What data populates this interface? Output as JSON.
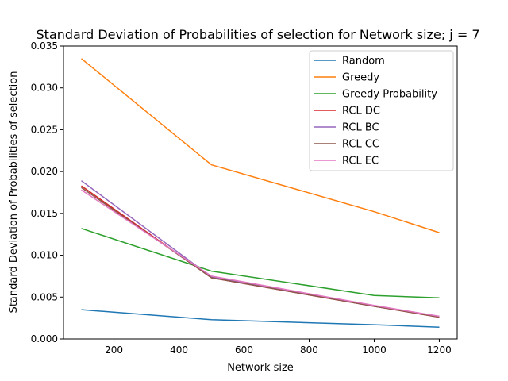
{
  "chart_data": {
    "type": "line",
    "title": "Standard Deviation of Probabilities of selection for Network size; j = 7",
    "xlabel": "Network size",
    "ylabel": "Standard Deviation of Probabilities of selection",
    "x": [
      100,
      500,
      1000,
      1200
    ],
    "xlim": [
      45,
      1255
    ],
    "ylim": [
      0,
      0.035
    ],
    "xticks": [
      200,
      400,
      600,
      800,
      1000,
      1200
    ],
    "xtick_labels": [
      "200",
      "400",
      "600",
      "800",
      "1000",
      "1200"
    ],
    "yticks": [
      0.0,
      0.005,
      0.01,
      0.015,
      0.02,
      0.025,
      0.03,
      0.035
    ],
    "ytick_labels": [
      "0.000",
      "0.005",
      "0.010",
      "0.015",
      "0.020",
      "0.025",
      "0.030",
      "0.035"
    ],
    "grid": false,
    "legend_position": "top-right",
    "series": [
      {
        "name": "Random",
        "color": "#1f77b4",
        "values": [
          0.0035,
          0.0023,
          0.0017,
          0.0014
        ]
      },
      {
        "name": "Greedy",
        "color": "#ff7f0e",
        "values": [
          0.0335,
          0.0208,
          0.0152,
          0.0127
        ]
      },
      {
        "name": "Greedy Probability",
        "color": "#2ca02c",
        "values": [
          0.0132,
          0.0081,
          0.0052,
          0.0049
        ]
      },
      {
        "name": "RCL DC",
        "color": "#d62728",
        "values": [
          0.0183,
          0.0073,
          0.0039,
          0.0026
        ]
      },
      {
        "name": "RCL BC",
        "color": "#9467bd",
        "values": [
          0.0189,
          0.0074,
          0.0039,
          0.0027
        ]
      },
      {
        "name": "RCL CC",
        "color": "#8c564b",
        "values": [
          0.0181,
          0.0073,
          0.0039,
          0.0026
        ]
      },
      {
        "name": "RCL EC",
        "color": "#e377c2",
        "values": [
          0.0178,
          0.0075,
          0.004,
          0.0027
        ]
      }
    ]
  }
}
